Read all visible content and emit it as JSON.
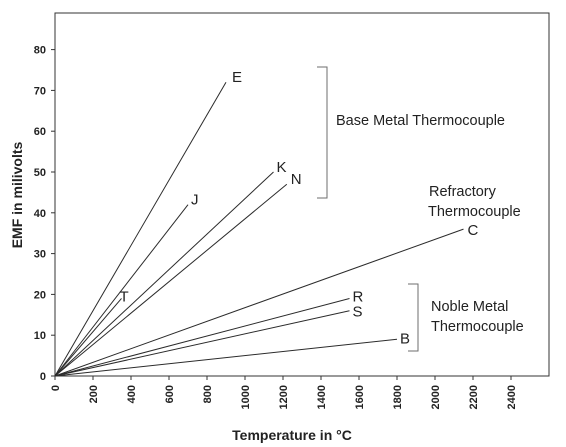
{
  "chart_data": {
    "type": "line",
    "xlabel": "Temperature in °C",
    "ylabel": "EMF in milivolts",
    "xlim": [
      0,
      2500
    ],
    "ylim": [
      0,
      90
    ],
    "x_ticks": [
      0,
      200,
      400,
      600,
      800,
      1000,
      1200,
      1400,
      1600,
      1800,
      2000,
      2200,
      2400
    ],
    "y_ticks": [
      0,
      10,
      20,
      30,
      40,
      50,
      60,
      70,
      80
    ],
    "grid": false,
    "legend": "none",
    "series": [
      {
        "name": "E",
        "x": [
          0,
          900
        ],
        "y": [
          0,
          72
        ]
      },
      {
        "name": "J",
        "x": [
          0,
          700
        ],
        "y": [
          0,
          42
        ]
      },
      {
        "name": "T",
        "x": [
          0,
          350
        ],
        "y": [
          0,
          19
        ]
      },
      {
        "name": "K",
        "x": [
          0,
          1150
        ],
        "y": [
          0,
          50
        ]
      },
      {
        "name": "N",
        "x": [
          0,
          1220
        ],
        "y": [
          0,
          47
        ]
      },
      {
        "name": "C",
        "x": [
          0,
          2150
        ],
        "y": [
          0,
          36
        ]
      },
      {
        "name": "R",
        "x": [
          0,
          1550
        ],
        "y": [
          0,
          19
        ]
      },
      {
        "name": "S",
        "x": [
          0,
          1550
        ],
        "y": [
          0,
          16
        ]
      },
      {
        "name": "B",
        "x": [
          0,
          1800
        ],
        "y": [
          0,
          9
        ]
      }
    ],
    "annotations": {
      "base_metal": "Base Metal Thermocouple",
      "refractory_line1": "Refractory",
      "refractory_line2": "Thermocouple",
      "noble_line1": "Noble Metal",
      "noble_line2": "Thermocouple"
    }
  },
  "colors": {
    "line": "#2b2b2b",
    "bracket": "#6e6e6e",
    "axis": "#333333",
    "text": "#222222"
  }
}
